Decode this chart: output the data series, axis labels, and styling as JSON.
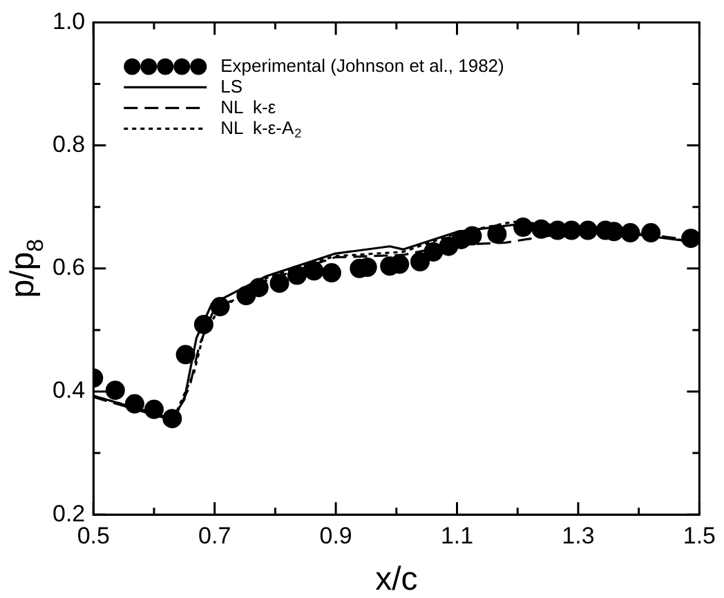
{
  "chart_data": {
    "type": "line",
    "xlabel": "x/c",
    "ylabel": "p/p$_{8}$",
    "xlim": [
      0.5,
      1.5
    ],
    "ylim": [
      0.2,
      1.0
    ],
    "xticks": [
      0.5,
      {
        "value": 0.6,
        "label": null
      },
      0.7,
      {
        "value": 0.8,
        "label": null
      },
      0.9,
      {
        "value": 1.0,
        "label": null
      },
      1.1,
      {
        "value": 1.2,
        "label": null
      },
      1.3,
      {
        "value": 1.4,
        "label": null
      },
      1.5
    ],
    "yticks": [
      0.2,
      {
        "value": 0.3,
        "label": null
      },
      0.4,
      {
        "value": 0.5,
        "label": null
      },
      0.6,
      {
        "value": 0.7,
        "label": null
      },
      0.8,
      {
        "value": 0.9,
        "label": null
      },
      {
        "value": 1.0,
        "label": "1.0"
      }
    ],
    "grid": false,
    "legend": "top left",
    "series": [
      {
        "name": "Experimental (Johnson et al., 1982)",
        "type": "scatter",
        "marker": "circle",
        "color": "#000000",
        "x": [
          0.5,
          0.536,
          0.568,
          0.6,
          0.63,
          0.652,
          0.682,
          0.709,
          0.752,
          0.773,
          0.807,
          0.836,
          0.864,
          0.893,
          0.939,
          0.952,
          0.989,
          1.005,
          1.039,
          1.061,
          1.086,
          1.107,
          1.125,
          1.166,
          1.209,
          1.239,
          1.266,
          1.289,
          1.316,
          1.345,
          1.359,
          1.386,
          1.42,
          1.486
        ],
        "values": [
          0.422,
          0.402,
          0.38,
          0.371,
          0.356,
          0.46,
          0.509,
          0.538,
          0.556,
          0.569,
          0.576,
          0.589,
          0.596,
          0.593,
          0.6,
          0.602,
          0.604,
          0.607,
          0.611,
          0.627,
          0.636,
          0.647,
          0.653,
          0.656,
          0.667,
          0.664,
          0.662,
          0.662,
          0.662,
          0.662,
          0.66,
          0.658,
          0.658,
          0.649
        ]
      },
      {
        "name": "LS",
        "type": "line",
        "line_style": "solid",
        "marker": "none",
        "color": "#000000",
        "x": [
          0.5,
          0.63,
          0.65,
          0.67,
          0.695,
          0.784,
          0.898,
          0.989,
          1.011,
          1.102,
          1.193,
          1.284,
          1.375,
          1.5
        ],
        "values": [
          0.393,
          0.356,
          0.387,
          0.487,
          0.542,
          0.587,
          0.624,
          0.636,
          0.631,
          0.66,
          0.671,
          0.669,
          0.658,
          0.642
        ]
      },
      {
        "name": "NL  k-ε",
        "type": "line",
        "line_style": "dashed",
        "marker": "none",
        "color": "#000000",
        "x": [
          0.5,
          0.632,
          0.659,
          0.675,
          0.698,
          0.784,
          0.898,
          1.011,
          1.08,
          1.136,
          1.18,
          1.25,
          1.327,
          1.395,
          1.5
        ],
        "values": [
          0.391,
          0.353,
          0.409,
          0.476,
          0.531,
          0.58,
          0.618,
          0.622,
          0.636,
          0.64,
          0.642,
          0.653,
          0.662,
          0.658,
          0.644
        ]
      },
      {
        "name": "NL  k-ε-A$_{2}$",
        "type": "line",
        "line_style": "dotted",
        "marker": "none",
        "color": "#000000",
        "x": [
          0.5,
          0.632,
          0.666,
          0.68,
          0.705,
          0.784,
          0.898,
          1.011,
          1.102,
          1.193,
          1.284,
          1.375,
          1.5
        ],
        "values": [
          0.393,
          0.356,
          0.431,
          0.487,
          0.531,
          0.584,
          0.62,
          0.627,
          0.658,
          0.676,
          0.669,
          0.66,
          0.642
        ]
      }
    ]
  }
}
